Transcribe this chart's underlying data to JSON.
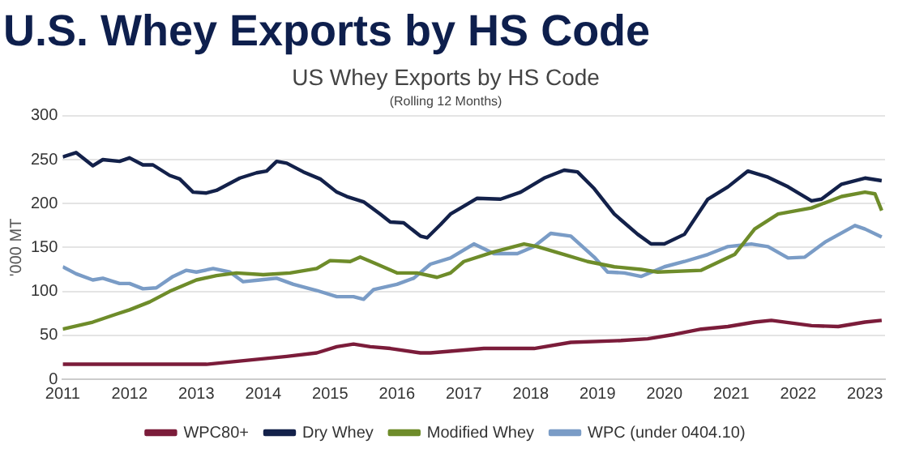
{
  "chart_data": {
    "type": "line",
    "title": "US Whey Exports by HS Code",
    "subtitle": "(Rolling 12 Months)",
    "ylabel": "'000 MT",
    "annotations": [
      "U.S. Whey Exports by HS Code"
    ],
    "xlim": [
      2011,
      2023.3
    ],
    "xticks": [
      2011,
      2012,
      2013,
      2014,
      2015,
      2016,
      2017,
      2018,
      2019,
      2020,
      2021,
      2022,
      2023
    ],
    "ylim": [
      0,
      300
    ],
    "yticks": [
      0,
      50,
      100,
      150,
      200,
      250,
      300
    ],
    "grid": "y",
    "legend": "bottom",
    "marker": "none",
    "line_style": "solid",
    "series": [
      {
        "name": "WPC80+",
        "color": "#7b1c3a",
        "x": [
          2011,
          2012.35,
          2013.15,
          2013.55,
          2014.35,
          2014.8,
          2015.1,
          2015.35,
          2015.6,
          2015.9,
          2016.35,
          2016.5,
          2017.3,
          2018.05,
          2018.6,
          2019.35,
          2019.75,
          2020.15,
          2020.55,
          2020.95,
          2021.35,
          2021.6,
          2022.2,
          2022.6,
          2023,
          2023.25
        ],
        "values": [
          17,
          17,
          17,
          20,
          26,
          30,
          37,
          40,
          37,
          35,
          30,
          30,
          35,
          35,
          42,
          44,
          46,
          51,
          57,
          60,
          65,
          67,
          61,
          60,
          65,
          67
        ]
      },
      {
        "name": "Dry Whey",
        "color": "#13214a",
        "x": [
          2011,
          2011.2,
          2011.45,
          2011.6,
          2011.85,
          2012,
          2012.2,
          2012.35,
          2012.6,
          2012.75,
          2012.95,
          2013.15,
          2013.3,
          2013.65,
          2013.9,
          2014.05,
          2014.2,
          2014.35,
          2014.6,
          2014.85,
          2015.1,
          2015.25,
          2015.5,
          2015.75,
          2015.9,
          2016.1,
          2016.35,
          2016.45,
          2016.65,
          2016.8,
          2017.2,
          2017.55,
          2017.85,
          2018.2,
          2018.5,
          2018.7,
          2018.95,
          2019.25,
          2019.6,
          2019.8,
          2020,
          2020.3,
          2020.65,
          2020.95,
          2021.25,
          2021.55,
          2021.85,
          2022.2,
          2022.35,
          2022.65,
          2023,
          2023.25
        ],
        "values": [
          253,
          258,
          243,
          250,
          248,
          252,
          244,
          244,
          232,
          228,
          213,
          212,
          215,
          229,
          235,
          237,
          248,
          246,
          236,
          228,
          213,
          208,
          202,
          188,
          179,
          178,
          163,
          161,
          176,
          188,
          206,
          205,
          213,
          229,
          238,
          236,
          217,
          188,
          165,
          154,
          154,
          165,
          205,
          219,
          237,
          230,
          219,
          203,
          205,
          222,
          229,
          226
        ]
      },
      {
        "name": "Modified Whey",
        "color": "#6e8c2a",
        "x": [
          2011,
          2011.45,
          2011.8,
          2012,
          2012.3,
          2012.6,
          2013,
          2013.3,
          2013.6,
          2014,
          2014.4,
          2014.8,
          2015,
          2015.3,
          2015.45,
          2015.7,
          2016,
          2016.3,
          2016.6,
          2016.8,
          2017,
          2017.45,
          2017.9,
          2018.1,
          2018.5,
          2018.85,
          2019.25,
          2019.65,
          2019.9,
          2020.55,
          2021.05,
          2021.35,
          2021.7,
          2022.2,
          2022.65,
          2023,
          2023.15,
          2023.25
        ],
        "values": [
          57,
          65,
          74,
          79,
          88,
          100,
          113,
          118,
          121,
          119,
          121,
          126,
          135,
          134,
          139,
          131,
          121,
          121,
          116,
          121,
          134,
          145,
          154,
          151,
          142,
          134,
          128,
          125,
          122,
          124,
          142,
          171,
          188,
          195,
          208,
          213,
          211,
          192
        ]
      },
      {
        "name": "WPC (under 0404.10)",
        "color": "#7a9cc6",
        "x": [
          2011,
          2011.2,
          2011.45,
          2011.6,
          2011.85,
          2012,
          2012.2,
          2012.4,
          2012.65,
          2012.85,
          2013,
          2013.25,
          2013.5,
          2013.7,
          2013.95,
          2014.2,
          2014.45,
          2014.8,
          2015.1,
          2015.35,
          2015.5,
          2015.65,
          2016,
          2016.25,
          2016.5,
          2016.8,
          2017.15,
          2017.45,
          2017.8,
          2018.05,
          2018.3,
          2018.6,
          2018.95,
          2019.15,
          2019.4,
          2019.65,
          2020,
          2020.3,
          2020.65,
          2020.95,
          2021.3,
          2021.55,
          2021.85,
          2022.1,
          2022.4,
          2022.85,
          2023,
          2023.25
        ],
        "values": [
          128,
          120,
          113,
          115,
          109,
          109,
          103,
          104,
          117,
          124,
          122,
          126,
          122,
          111,
          113,
          115,
          108,
          101,
          94,
          94,
          91,
          102,
          108,
          115,
          131,
          138,
          154,
          143,
          143,
          151,
          166,
          163,
          139,
          122,
          121,
          117,
          128,
          134,
          142,
          151,
          154,
          151,
          138,
          139,
          156,
          175,
          171,
          162
        ]
      }
    ]
  }
}
